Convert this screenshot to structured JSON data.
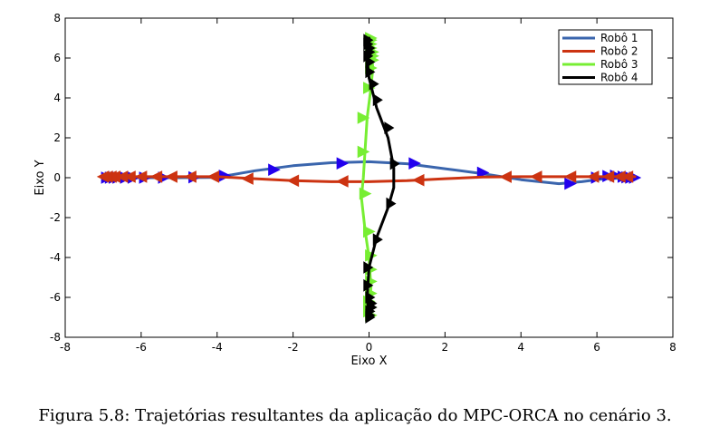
{
  "chart_data": {
    "type": "line",
    "title": "",
    "xlabel": "Eixo X",
    "ylabel": "Eixo Y",
    "xlim": [
      -8,
      8
    ],
    "ylim": [
      -8,
      8
    ],
    "xticks": [
      -8,
      -6,
      -4,
      -2,
      0,
      2,
      4,
      6,
      8
    ],
    "yticks": [
      -8,
      -6,
      -4,
      -2,
      0,
      2,
      4,
      6,
      8
    ],
    "grid": false,
    "legend_position": "top-right",
    "series": [
      {
        "name": "Robô 1",
        "color": "#3a65ad",
        "marker_color": "#2200ee",
        "x": [
          -7.0,
          -6.0,
          -5.0,
          -4.0,
          -3.0,
          -2.0,
          -1.0,
          0.0,
          1.0,
          2.0,
          3.0,
          4.0,
          5.0,
          5.6,
          6.2,
          7.0
        ],
        "y": [
          0.0,
          0.0,
          0.0,
          0.02,
          0.35,
          0.6,
          0.75,
          0.8,
          0.7,
          0.45,
          0.2,
          -0.1,
          -0.3,
          -0.2,
          -0.05,
          0.0
        ],
        "markers": [
          [
            -6.9,
            0
          ],
          [
            -6.8,
            0
          ],
          [
            -6.7,
            0
          ],
          [
            -6.6,
            0
          ],
          [
            -6.4,
            0
          ],
          [
            -6.2,
            0
          ],
          [
            -5.9,
            0
          ],
          [
            -5.4,
            0
          ],
          [
            -4.6,
            0.02
          ],
          [
            -3.8,
            0.1
          ],
          [
            -2.5,
            0.4
          ],
          [
            -0.7,
            0.72
          ],
          [
            1.2,
            0.72
          ],
          [
            3.0,
            0.25
          ],
          [
            5.3,
            -0.3
          ],
          [
            6.0,
            0.0
          ],
          [
            6.3,
            0.08
          ],
          [
            6.5,
            0.1
          ],
          [
            6.7,
            0.05
          ],
          [
            6.8,
            0.02
          ],
          [
            6.9,
            0.0
          ],
          [
            7.0,
            0.0
          ]
        ],
        "marker_dir": 1
      },
      {
        "name": "Robô 2",
        "color": "#cc3311",
        "marker_color": "#cc3311",
        "x": [
          -7.0,
          -6.0,
          -5.0,
          -4.0,
          -3.0,
          -2.0,
          -1.0,
          0.0,
          1.0,
          2.0,
          3.0,
          4.0,
          5.0,
          6.0,
          7.0
        ],
        "y": [
          0.05,
          0.05,
          0.05,
          0.05,
          -0.05,
          -0.15,
          -0.2,
          -0.2,
          -0.15,
          -0.05,
          0.03,
          0.05,
          0.05,
          0.05,
          0.05
        ],
        "markers": [
          [
            6.8,
            0.05
          ],
          [
            6.6,
            0.05
          ],
          [
            6.3,
            0.05
          ],
          [
            5.9,
            0.05
          ],
          [
            5.3,
            0.05
          ],
          [
            4.4,
            0.05
          ],
          [
            3.6,
            0.04
          ],
          [
            1.3,
            -0.12
          ],
          [
            -0.7,
            -0.18
          ],
          [
            -2.0,
            -0.15
          ],
          [
            -3.2,
            -0.05
          ],
          [
            -4.1,
            0.05
          ],
          [
            -4.7,
            0.05
          ],
          [
            -5.2,
            0.05
          ],
          [
            -5.6,
            0.05
          ],
          [
            -6.0,
            0.05
          ],
          [
            -6.3,
            0.05
          ],
          [
            -6.5,
            0.05
          ],
          [
            -6.7,
            0.05
          ],
          [
            -6.8,
            0.05
          ],
          [
            -6.9,
            0.05
          ],
          [
            -7.0,
            0.05
          ]
        ],
        "marker_dir": -1
      },
      {
        "name": "Robô 3",
        "color": "#77ee33",
        "marker_color": "#77ee33",
        "x": [
          0.0,
          0.05,
          0.0,
          -0.1,
          -0.2,
          -0.15,
          -0.1,
          -0.05,
          0.05,
          0.1,
          0.05,
          0.0
        ],
        "y": [
          -7.0,
          -5.5,
          -4.0,
          -2.7,
          -1.0,
          0.0,
          1.5,
          3.0,
          4.5,
          5.5,
          6.5,
          7.0
        ],
        "markers": [
          [
            0.05,
            -6.9
          ],
          [
            0.0,
            -6.7
          ],
          [
            0.05,
            -6.5
          ],
          [
            0.0,
            -6.2
          ],
          [
            0.05,
            -5.8
          ],
          [
            0.05,
            -5.2
          ],
          [
            0.05,
            -4.6
          ],
          [
            0.05,
            -3.9
          ],
          [
            0.0,
            -2.7
          ],
          [
            -0.1,
            -0.8
          ],
          [
            -0.15,
            1.3
          ],
          [
            -0.15,
            3.0
          ],
          [
            0.0,
            4.5
          ],
          [
            0.05,
            5.5
          ],
          [
            0.1,
            5.9
          ],
          [
            0.1,
            6.1
          ],
          [
            0.1,
            6.3
          ],
          [
            0.05,
            6.5
          ],
          [
            0.05,
            6.7
          ],
          [
            0.05,
            6.9
          ],
          [
            0.05,
            7.0
          ]
        ],
        "marker_dir": 1
      },
      {
        "name": "Robô 4",
        "color": "#000000",
        "marker_color": "#000000",
        "x": [
          0.0,
          -0.05,
          0.0,
          0.2,
          0.5,
          0.65,
          0.65,
          0.5,
          0.2,
          0.0,
          -0.05,
          0.0
        ],
        "y": [
          7.0,
          6.0,
          5.0,
          3.5,
          2.0,
          0.5,
          -0.5,
          -1.5,
          -3.0,
          -4.5,
          -6.0,
          -7.0
        ],
        "markers": [
          [
            -0.05,
            6.9
          ],
          [
            -0.05,
            6.7
          ],
          [
            0.0,
            6.5
          ],
          [
            0.0,
            6.3
          ],
          [
            -0.05,
            6.1
          ],
          [
            0.0,
            5.8
          ],
          [
            0.0,
            5.3
          ],
          [
            0.1,
            4.7
          ],
          [
            0.2,
            3.9
          ],
          [
            0.5,
            2.5
          ],
          [
            0.65,
            0.7
          ],
          [
            0.55,
            -1.3
          ],
          [
            0.2,
            -3.1
          ],
          [
            -0.05,
            -4.5
          ],
          [
            -0.05,
            -5.4
          ],
          [
            0.0,
            -6.0
          ],
          [
            0.05,
            -6.3
          ],
          [
            0.05,
            -6.5
          ],
          [
            0.0,
            -6.7
          ],
          [
            0.0,
            -6.9
          ],
          [
            0.0,
            -7.0
          ]
        ],
        "marker_dir": -1,
        "vertical": true
      }
    ]
  },
  "caption": "Figura 5.8: Trajetórias resultantes da aplicação do MPC-ORCA no cenário 3."
}
